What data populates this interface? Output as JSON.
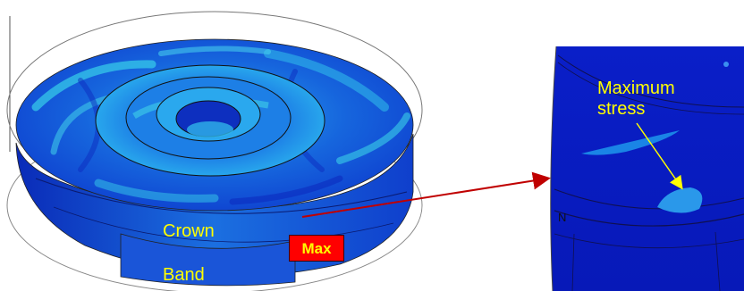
{
  "labels": {
    "crown": "Crown",
    "band": "Band",
    "max": "Max",
    "maximum_stress_line1": "Maximum",
    "maximum_stress_line2": "stress",
    "axis_marker": "N"
  },
  "colors": {
    "label_text": "#ffff00",
    "max_badge_fill": "#ff0000",
    "callout_arrow": "#c00000",
    "stress_low": "#0b1fd6",
    "stress_mid": "#1a7fe8",
    "stress_high": "#3fd0e8"
  }
}
